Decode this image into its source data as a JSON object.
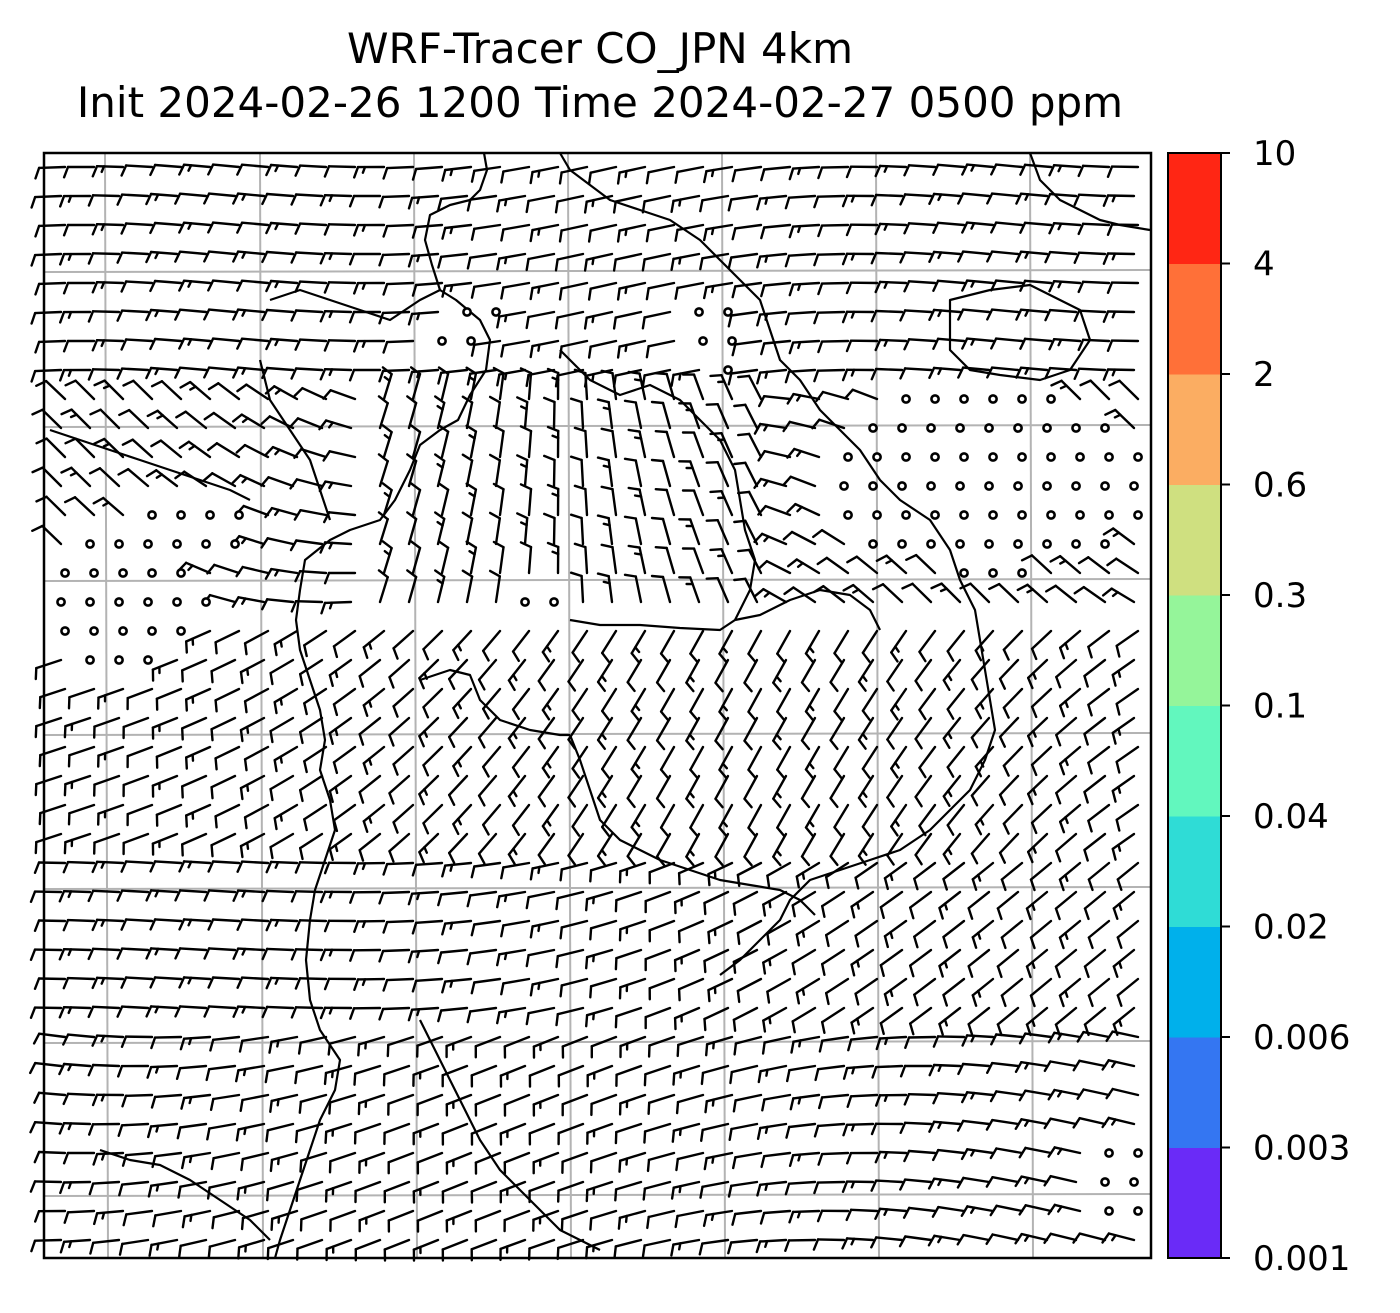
{
  "title": {
    "line1": "WRF-Tracer CO_JPN 4km",
    "line2": "Init 2024-02-26 1200 Time 2024-02-27 0500 ppm"
  },
  "colorbar": {
    "labels": [
      "0.001",
      "0.003",
      "0.006",
      "0.02",
      "0.04",
      "0.1",
      "0.3",
      "0.6",
      "2",
      "4",
      "10"
    ],
    "colors": [
      "#6a2bf7",
      "#3476f2",
      "#00b0eb",
      "#2fdcd6",
      "#62f7be",
      "#95f59a",
      "#cfe080",
      "#fbad62",
      "#ff7038",
      "#ff2614"
    ]
  },
  "map": {
    "gridlines": true,
    "colors": {
      "grid": "#b3b3b3",
      "coast": "#000000",
      "frame": "#000000"
    },
    "field_symbols": [
      "wind-barb",
      "calm-circle"
    ]
  }
}
